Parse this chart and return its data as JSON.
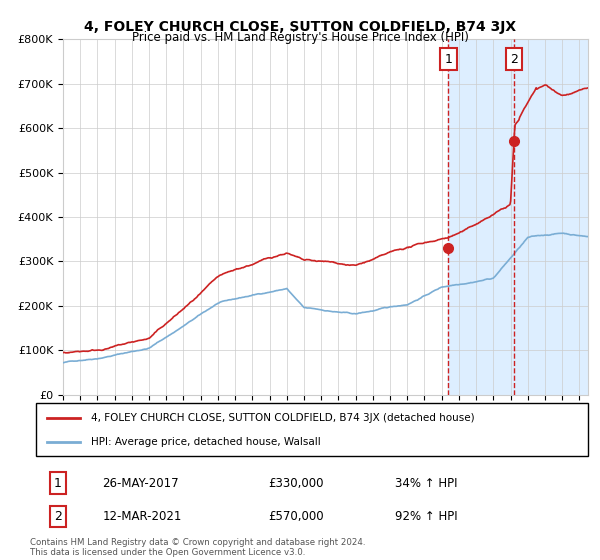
{
  "title": "4, FOLEY CHURCH CLOSE, SUTTON COLDFIELD, B74 3JX",
  "subtitle": "Price paid vs. HM Land Registry's House Price Index (HPI)",
  "legend_line1": "4, FOLEY CHURCH CLOSE, SUTTON COLDFIELD, B74 3JX (detached house)",
  "legend_line2": "HPI: Average price, detached house, Walsall",
  "annotation1_date": "26-MAY-2017",
  "annotation1_price": "£330,000",
  "annotation1_hpi": "34% ↑ HPI",
  "annotation2_date": "12-MAR-2021",
  "annotation2_price": "£570,000",
  "annotation2_hpi": "92% ↑ HPI",
  "footer": "Contains HM Land Registry data © Crown copyright and database right 2024.\nThis data is licensed under the Open Government Licence v3.0.",
  "hpi_color": "#7aadd4",
  "price_color": "#cc2222",
  "dot_color": "#cc2222",
  "vline_color": "#cc2222",
  "shade_color": "#ddeeff",
  "ylim": [
    0,
    800000
  ],
  "yticks": [
    0,
    100000,
    200000,
    300000,
    400000,
    500000,
    600000,
    700000,
    800000
  ],
  "ytick_labels": [
    "£0",
    "£100K",
    "£200K",
    "£300K",
    "£400K",
    "£500K",
    "£600K",
    "£700K",
    "£800K"
  ],
  "sale1_year": 2017.38,
  "sale1_value": 330000,
  "sale2_year": 2021.2,
  "sale2_value": 570000,
  "xmin": 1995,
  "xmax": 2025.5,
  "background_color": "#ffffff",
  "grid_color": "#cccccc"
}
